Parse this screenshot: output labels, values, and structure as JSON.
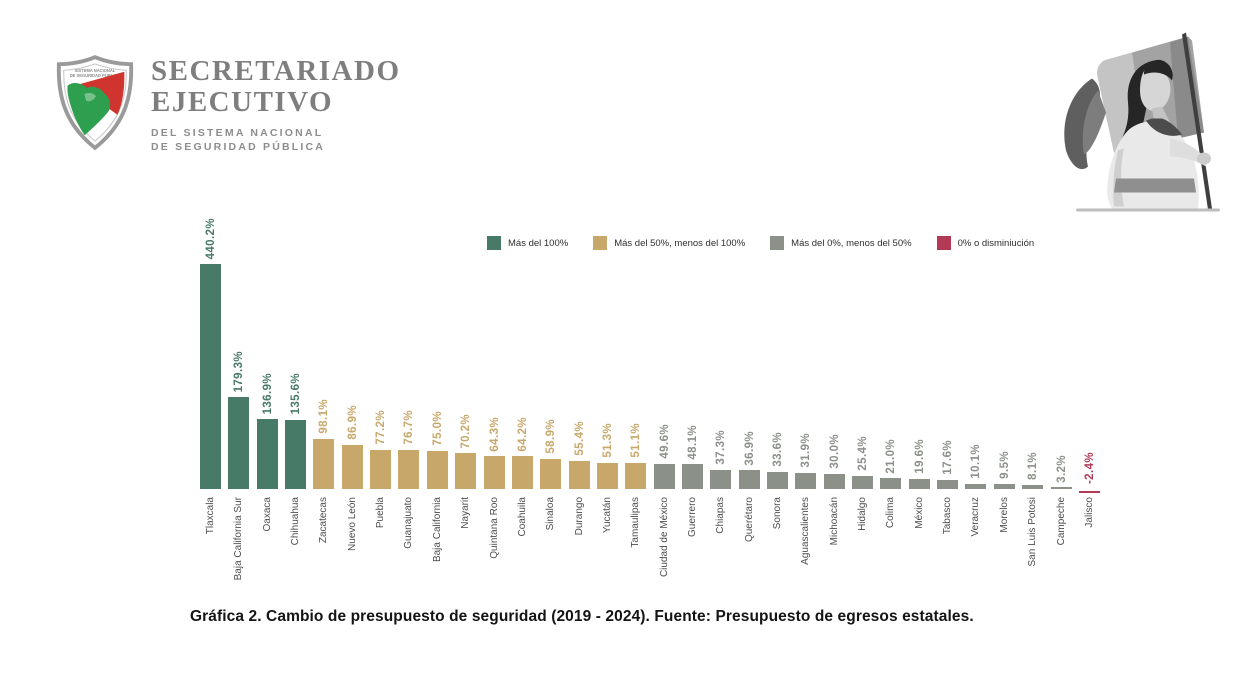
{
  "logo": {
    "title_line1": "SECRETARIADO",
    "title_line2": "EJECUTIVO",
    "subtitle_line1": "DEL SISTEMA NACIONAL",
    "subtitle_line2": "DE SEGURIDAD PÚBLICA",
    "shield_line1": "SISTEMA NACIONAL",
    "shield_line2": "DE SEGURIDAD PÚBLICA"
  },
  "chart_data": {
    "type": "bar",
    "caption": "Gráfica 2. Cambio de presupuesto de seguridad (2019 - 2024). Fuente: Presupuesto de egresos estatales.",
    "xlabel": "",
    "ylabel": "",
    "unit": "%",
    "ylim": [
      -5,
      460
    ],
    "grid": false,
    "legend_position": "top-center",
    "categories": [
      "Tlaxcala",
      "Baja California Sur",
      "Oaxaca",
      "Chihuahua",
      "Zacatecas",
      "Nuevo León",
      "Puebla",
      "Guanajuato",
      "Baja California",
      "Nayarit",
      "Quintana Roo",
      "Coahuila",
      "Sinaloa",
      "Durango",
      "Yucatán",
      "Tamaulipas",
      "Ciudad de México",
      "Guerrero",
      "Chiapas",
      "Querétaro",
      "Sonora",
      "Aguascalientes",
      "Michoacán",
      "Hidalgo",
      "Colima",
      "México",
      "Tabasco",
      "Veracruz",
      "Morelos",
      "San Luis Potosi",
      "Campeche",
      "Jalisco"
    ],
    "values": [
      440.2,
      179.3,
      136.9,
      135.6,
      98.1,
      86.9,
      77.2,
      76.7,
      75.0,
      70.2,
      64.3,
      64.2,
      58.9,
      55.4,
      51.3,
      51.1,
      49.6,
      48.1,
      37.3,
      36.9,
      33.6,
      31.9,
      30.0,
      25.4,
      21.0,
      19.6,
      17.6,
      10.1,
      9.5,
      8.1,
      3.2,
      -2.4
    ],
    "legend": [
      {
        "label": "Más del 100%",
        "color": "#487a68"
      },
      {
        "label": "Más del 50%, menos del 100%",
        "color": "#c8a76a"
      },
      {
        "label": "Más del 0%, menos del 50%",
        "color": "#8b9089"
      },
      {
        "label": "0% o disminiución",
        "color": "#b23a56"
      }
    ]
  },
  "caption": {
    "text": "Gráfica 2. Cambio de presupuesto de seguridad (2019 - 2024). Fuente: Presupuesto de egresos estatales."
  }
}
